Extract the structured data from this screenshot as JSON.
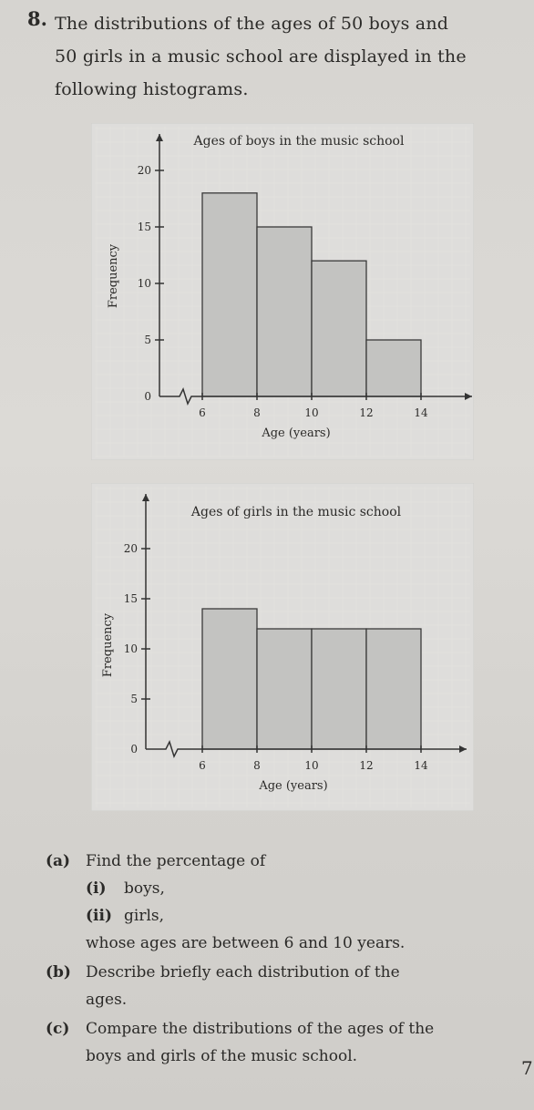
{
  "question": {
    "number": "8.",
    "intro_lines": [
      "The distributions of the ages of 50 boys and",
      "50 girls in a music school are displayed in the",
      "following histograms."
    ]
  },
  "chart_data": [
    {
      "type": "bar",
      "title": "Ages of boys in the music school",
      "xlabel": "Age (years)",
      "ylabel": "Frequency",
      "bin_edges": [
        6,
        8,
        10,
        12,
        14
      ],
      "categories": [
        "6-8",
        "8-10",
        "10-12",
        "12-14"
      ],
      "values": [
        18,
        15,
        12,
        5
      ],
      "ylim": [
        0,
        20
      ],
      "y_ticks": [
        0,
        5,
        10,
        15,
        20
      ],
      "x_ticks": [
        6,
        8,
        10,
        12,
        14
      ],
      "x_axis_break": true,
      "grid": true
    },
    {
      "type": "bar",
      "title": "Ages of girls in the music school",
      "xlabel": "Age (years)",
      "ylabel": "Frequency",
      "bin_edges": [
        6,
        8,
        10,
        12,
        14
      ],
      "categories": [
        "6-8",
        "8-10",
        "10-12",
        "12-14"
      ],
      "values": [
        14,
        12,
        12,
        12
      ],
      "ylim": [
        0,
        20
      ],
      "y_ticks": [
        0,
        5,
        10,
        15,
        20
      ],
      "x_ticks": [
        6,
        8,
        10,
        12,
        14
      ],
      "x_axis_break": true,
      "grid": true
    }
  ],
  "parts": {
    "a": {
      "label": "(a)",
      "text": "Find the percentage of",
      "sub": [
        {
          "label": "(i)",
          "text": "boys,"
        },
        {
          "label": "(ii)",
          "text": "girls,"
        }
      ],
      "tail": "whose ages are between 6 and 10 years."
    },
    "b": {
      "label": "(b)",
      "lines": [
        "Describe briefly each distribution of the",
        "ages."
      ]
    },
    "c": {
      "label": "(c)",
      "lines": [
        "Compare the distributions of the ages of the",
        "boys and girls of the music school."
      ]
    }
  },
  "page_mark": "7"
}
